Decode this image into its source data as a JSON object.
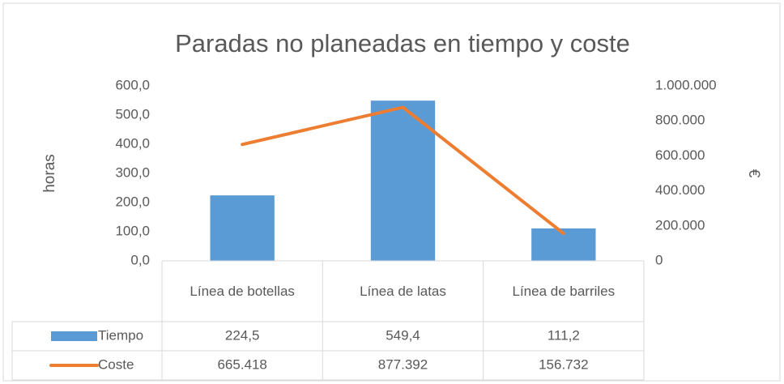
{
  "chart_data": {
    "type": "bar",
    "title": "Paradas no planeadas en tiempo y coste",
    "categories": [
      "Línea de botellas",
      "Línea de latas",
      "Línea de barriles"
    ],
    "series": [
      {
        "name": "Tiempo",
        "type": "bar",
        "color": "#5B9BD5",
        "values": [
          224.5,
          549.4,
          111.2
        ],
        "value_labels": [
          "224,5",
          "549,4",
          "111,2"
        ]
      },
      {
        "name": "Coste",
        "type": "line",
        "axis": "y2",
        "color": "#ED7D31",
        "values": [
          665418,
          877392,
          156732
        ],
        "value_labels": [
          "665.418",
          "877.392",
          "156.732"
        ]
      }
    ],
    "y_label": "horas",
    "y2_label": "€",
    "ylim": [
      0,
      600
    ],
    "yticks": [
      {
        "value": 0,
        "label": "0,0"
      },
      {
        "value": 100,
        "label": "100,0"
      },
      {
        "value": 200,
        "label": "200,0"
      },
      {
        "value": 300,
        "label": "300,0"
      },
      {
        "value": 400,
        "label": "400,0"
      },
      {
        "value": 500,
        "label": "500,0"
      },
      {
        "value": 600,
        "label": "600,0"
      }
    ],
    "y2lim": [
      0,
      1000000
    ],
    "y2ticks": [
      0,
      {
        "value": 200000,
        "label": "200.000"
      },
      {
        "value": 400000,
        "label": "400.000"
      },
      {
        "value": 600000,
        "label": "600.000"
      },
      {
        "value": 800000,
        "label": "800.000"
      },
      {
        "value": 1000000,
        "label": "1.000.000"
      }
    ],
    "grid": false,
    "data_table": true
  }
}
